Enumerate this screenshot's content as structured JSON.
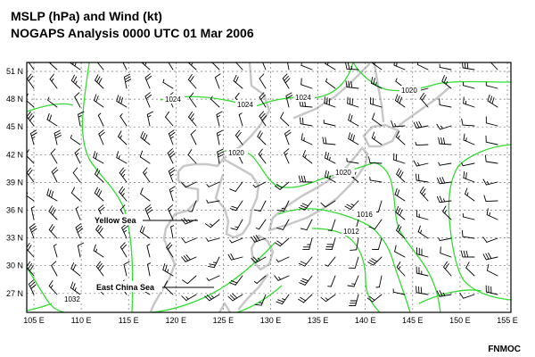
{
  "title_line1": "MSLP (hPa) and Wind (kt)",
  "title_line2": "NOGAPS Analysis 0000 UTC 01 Mar 2006",
  "credit": "FNMOC",
  "lat_labels": [
    "51 N",
    "48 N",
    "45 N",
    "42 N",
    "39 N",
    "36 N",
    "33 N",
    "30 N",
    "27 N"
  ],
  "lon_labels": [
    "105 E",
    "110 E",
    "115 E",
    "120 E",
    "125 E",
    "130 E",
    "135 E",
    "140 E",
    "145 E",
    "150 E",
    "155 E"
  ],
  "isobar_labels": [
    "1024",
    "1024",
    "1024",
    "1020",
    "1020",
    "1020",
    "1016",
    "1012",
    "1032"
  ],
  "region_labels": [
    "Yellow Sea",
    "East China Sea"
  ],
  "colors": {
    "isobar": "#33dd33",
    "land": "#c8c8c8",
    "grid": "#777777",
    "barb": "#000000",
    "frame": "#000000"
  }
}
